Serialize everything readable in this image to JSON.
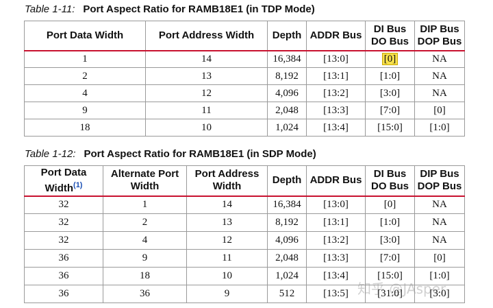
{
  "tables": [
    {
      "caption": {
        "label": "Table 1-11:",
        "title": "Port Aspect Ratio for RAMB18E1 (in TDP Mode)"
      },
      "header": [
        [
          "Port Data Width"
        ],
        [
          "Port Address Width"
        ],
        [
          "Depth"
        ],
        [
          "ADDR Bus"
        ],
        [
          "DI Bus",
          "DO Bus"
        ],
        [
          "DIP Bus",
          "DOP Bus"
        ]
      ],
      "rows": [
        [
          "1",
          "14",
          "16,384",
          "[13:0]",
          "[0]",
          "NA"
        ],
        [
          "2",
          "13",
          "8,192",
          "[13:1]",
          "[1:0]",
          "NA"
        ],
        [
          "4",
          "12",
          "4,096",
          "[13:2]",
          "[3:0]",
          "NA"
        ],
        [
          "9",
          "11",
          "2,048",
          "[13:3]",
          "[7:0]",
          "[0]"
        ],
        [
          "18",
          "10",
          "1,024",
          "[13:4]",
          "[15:0]",
          "[1:0]"
        ]
      ]
    },
    {
      "caption": {
        "label": "Table 1-12:",
        "title": "Port Aspect Ratio for RAMB18E1 (in SDP Mode)"
      },
      "header": [
        [
          "Port Data",
          "Width"
        ],
        [
          "Alternate Port",
          "Width"
        ],
        [
          "Port Address",
          "Width"
        ],
        [
          "Depth"
        ],
        [
          "ADDR Bus"
        ],
        [
          "DI Bus",
          "DO Bus"
        ],
        [
          "DIP Bus",
          "DOP Bus"
        ]
      ],
      "header_note": "(1)",
      "rows": [
        [
          "32",
          "1",
          "14",
          "16,384",
          "[13:0]",
          "[0]",
          "NA"
        ],
        [
          "32",
          "2",
          "13",
          "8,192",
          "[13:1]",
          "[1:0]",
          "NA"
        ],
        [
          "32",
          "4",
          "12",
          "4,096",
          "[13:2]",
          "[3:0]",
          "NA"
        ],
        [
          "36",
          "9",
          "11",
          "2,048",
          "[13:3]",
          "[7:0]",
          "[0]"
        ],
        [
          "36",
          "18",
          "10",
          "1,024",
          "[13:4]",
          "[15:0]",
          "[1:0]"
        ],
        [
          "36",
          "36",
          "9",
          "512",
          "[13:5]",
          "[31:0]",
          "[3:0]"
        ]
      ]
    }
  ],
  "watermark": "知乎 @JAsper"
}
